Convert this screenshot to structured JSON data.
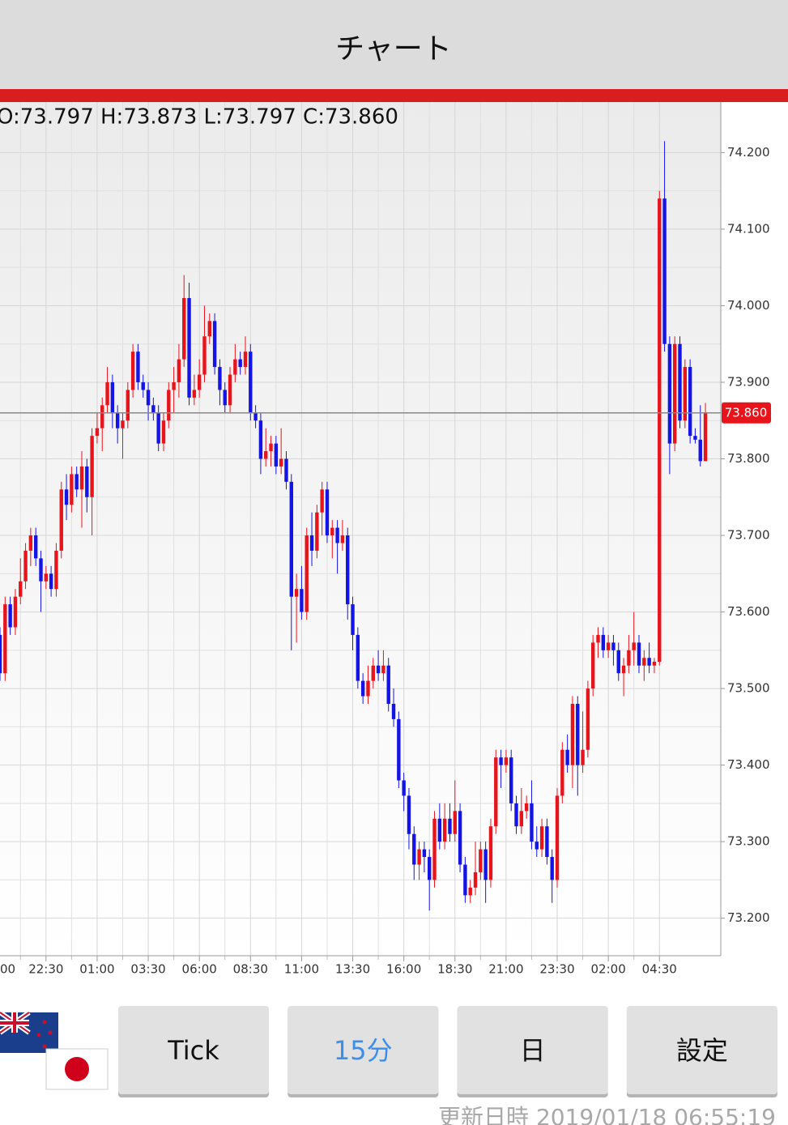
{
  "header": {
    "title": "チャート"
  },
  "chart_data": {
    "type": "candlestick",
    "ohlc_text": "O:73.797 H:73.873 L:73.797 C:73.860",
    "up_color": "#e8141c",
    "down_color": "#1414e6",
    "grid": true,
    "xlim": [
      0,
      141
    ],
    "xticks": [
      {
        "value": -1,
        "label": "00"
      },
      {
        "value": 9,
        "label": "22:30"
      },
      {
        "value": 19,
        "label": "01:00"
      },
      {
        "value": 29,
        "label": "03:30"
      },
      {
        "value": 39,
        "label": "06:00"
      },
      {
        "value": 49,
        "label": "08:30"
      },
      {
        "value": 59,
        "label": "11:00"
      },
      {
        "value": 69,
        "label": "13:30"
      },
      {
        "value": 79,
        "label": "16:00"
      },
      {
        "value": 89,
        "label": "18:30"
      },
      {
        "value": 99,
        "label": "21:00"
      },
      {
        "value": 109,
        "label": "23:30"
      },
      {
        "value": 119,
        "label": "02:00"
      },
      {
        "value": 129,
        "label": "04:30"
      }
    ],
    "ylim": [
      73.151,
      74.266
    ],
    "yticks": [
      {
        "value": 73.2,
        "label": "73.200"
      },
      {
        "value": 73.3,
        "label": "73.300"
      },
      {
        "value": 73.4,
        "label": "73.400"
      },
      {
        "value": 73.5,
        "label": "73.500"
      },
      {
        "value": 73.6,
        "label": "73.600"
      },
      {
        "value": 73.7,
        "label": "73.700"
      },
      {
        "value": 73.8,
        "label": "73.800"
      },
      {
        "value": 73.9,
        "label": "73.900"
      },
      {
        "value": 74,
        "label": "74.000"
      },
      {
        "value": 74.1,
        "label": "74.100"
      },
      {
        "value": 74.2,
        "label": "74.200"
      }
    ],
    "current_price": {
      "value": 73.86,
      "label": "73.860"
    },
    "candles": [
      [
        73.57,
        73.58,
        73.51,
        73.52
      ],
      [
        73.52,
        73.62,
        73.51,
        73.61
      ],
      [
        73.61,
        73.62,
        73.57,
        73.58
      ],
      [
        73.58,
        73.63,
        73.57,
        73.62
      ],
      [
        73.62,
        73.67,
        73.61,
        73.64
      ],
      [
        73.64,
        73.69,
        73.63,
        73.68
      ],
      [
        73.68,
        73.71,
        73.66,
        73.7
      ],
      [
        73.7,
        73.71,
        73.66,
        73.67
      ],
      [
        73.67,
        73.68,
        73.6,
        73.64
      ],
      [
        73.64,
        73.66,
        73.63,
        73.65
      ],
      [
        73.65,
        73.66,
        73.62,
        73.63
      ],
      [
        73.63,
        73.69,
        73.62,
        73.68
      ],
      [
        73.68,
        73.77,
        73.67,
        73.76
      ],
      [
        73.76,
        73.78,
        73.72,
        73.74
      ],
      [
        73.74,
        73.79,
        73.73,
        73.78
      ],
      [
        73.78,
        73.79,
        73.75,
        73.76
      ],
      [
        73.76,
        73.81,
        73.71,
        73.79
      ],
      [
        73.79,
        73.8,
        73.73,
        73.75
      ],
      [
        73.75,
        73.84,
        73.7,
        73.83
      ],
      [
        73.83,
        73.86,
        73.82,
        73.84
      ],
      [
        73.84,
        73.88,
        73.81,
        73.87
      ],
      [
        73.87,
        73.92,
        73.86,
        73.9
      ],
      [
        73.9,
        73.91,
        73.84,
        73.86
      ],
      [
        73.86,
        73.87,
        73.82,
        73.84
      ],
      [
        73.84,
        73.86,
        73.8,
        73.85
      ],
      [
        73.85,
        73.9,
        73.84,
        73.89
      ],
      [
        73.89,
        73.95,
        73.88,
        73.94
      ],
      [
        73.94,
        73.95,
        73.89,
        73.9
      ],
      [
        73.9,
        73.91,
        73.88,
        73.89
      ],
      [
        73.89,
        73.9,
        73.85,
        73.87
      ],
      [
        73.87,
        73.88,
        73.85,
        73.86
      ],
      [
        73.86,
        73.87,
        73.81,
        73.82
      ],
      [
        73.82,
        73.86,
        73.81,
        73.85
      ],
      [
        73.85,
        73.9,
        73.84,
        73.89
      ],
      [
        73.89,
        73.92,
        73.86,
        73.9
      ],
      [
        73.9,
        73.95,
        73.88,
        73.93
      ],
      [
        73.93,
        74.04,
        73.92,
        74.01
      ],
      [
        74.01,
        74.03,
        73.87,
        73.88
      ],
      [
        73.88,
        73.91,
        73.87,
        73.89
      ],
      [
        73.89,
        73.93,
        73.88,
        73.91
      ],
      [
        73.91,
        74.0,
        73.9,
        73.96
      ],
      [
        73.96,
        73.99,
        73.95,
        73.98
      ],
      [
        73.98,
        73.99,
        73.91,
        73.92
      ],
      [
        73.92,
        73.93,
        73.87,
        73.89
      ],
      [
        73.89,
        73.9,
        73.86,
        73.87
      ],
      [
        73.87,
        73.92,
        73.86,
        73.91
      ],
      [
        73.91,
        73.95,
        73.9,
        73.93
      ],
      [
        73.93,
        73.94,
        73.91,
        73.92
      ],
      [
        73.92,
        73.96,
        73.91,
        73.94
      ],
      [
        73.94,
        73.95,
        73.85,
        73.86
      ],
      [
        73.86,
        73.87,
        73.84,
        73.85
      ],
      [
        73.85,
        73.86,
        73.78,
        73.8
      ],
      [
        73.8,
        73.84,
        73.79,
        73.81
      ],
      [
        73.81,
        73.83,
        73.79,
        73.82
      ],
      [
        73.82,
        73.83,
        73.78,
        73.79
      ],
      [
        73.79,
        73.84,
        73.78,
        73.8
      ],
      [
        73.8,
        73.81,
        73.76,
        73.77
      ],
      [
        73.77,
        73.78,
        73.55,
        73.62
      ],
      [
        73.62,
        73.65,
        73.56,
        73.63
      ],
      [
        73.63,
        73.66,
        73.59,
        73.6
      ],
      [
        73.6,
        73.71,
        73.59,
        73.7
      ],
      [
        73.7,
        73.73,
        73.66,
        73.68
      ],
      [
        73.68,
        73.74,
        73.67,
        73.73
      ],
      [
        73.73,
        73.77,
        73.7,
        73.76
      ],
      [
        73.76,
        73.77,
        73.69,
        73.7
      ],
      [
        73.7,
        73.72,
        73.67,
        73.71
      ],
      [
        73.71,
        73.72,
        73.65,
        73.69
      ],
      [
        73.69,
        73.72,
        73.68,
        73.7
      ],
      [
        73.7,
        73.71,
        73.59,
        73.61
      ],
      [
        73.61,
        73.62,
        73.55,
        73.57
      ],
      [
        73.57,
        73.58,
        73.5,
        73.51
      ],
      [
        73.51,
        73.52,
        73.48,
        73.49
      ],
      [
        73.49,
        73.53,
        73.48,
        73.51
      ],
      [
        73.51,
        73.54,
        73.5,
        73.53
      ],
      [
        73.53,
        73.55,
        73.51,
        73.52
      ],
      [
        73.52,
        73.55,
        73.51,
        73.53
      ],
      [
        73.53,
        73.54,
        73.47,
        73.48
      ],
      [
        73.48,
        73.5,
        73.45,
        73.46
      ],
      [
        73.46,
        73.47,
        73.37,
        73.38
      ],
      [
        73.38,
        73.39,
        73.34,
        73.36
      ],
      [
        73.36,
        73.37,
        73.29,
        73.31
      ],
      [
        73.31,
        73.32,
        73.25,
        73.27
      ],
      [
        73.27,
        73.3,
        73.25,
        73.29
      ],
      [
        73.29,
        73.3,
        73.26,
        73.28
      ],
      [
        73.28,
        73.29,
        73.21,
        73.25
      ],
      [
        73.25,
        73.34,
        73.24,
        73.33
      ],
      [
        73.33,
        73.35,
        73.29,
        73.3
      ],
      [
        73.3,
        73.35,
        73.29,
        73.33
      ],
      [
        73.33,
        73.35,
        73.3,
        73.31
      ],
      [
        73.31,
        73.38,
        73.3,
        73.34
      ],
      [
        73.34,
        73.35,
        73.26,
        73.27
      ],
      [
        73.27,
        73.28,
        73.22,
        73.23
      ],
      [
        73.23,
        73.25,
        73.22,
        73.24
      ],
      [
        73.24,
        73.3,
        73.23,
        73.26
      ],
      [
        73.26,
        73.3,
        73.25,
        73.29
      ],
      [
        73.29,
        73.3,
        73.22,
        73.25
      ],
      [
        73.25,
        73.33,
        73.24,
        73.32
      ],
      [
        73.32,
        73.42,
        73.31,
        73.41
      ],
      [
        73.41,
        73.42,
        73.37,
        73.4
      ],
      [
        73.4,
        73.42,
        73.39,
        73.41
      ],
      [
        73.41,
        73.42,
        73.34,
        73.35
      ],
      [
        73.35,
        73.36,
        73.31,
        73.32
      ],
      [
        73.32,
        73.37,
        73.31,
        73.34
      ],
      [
        73.34,
        73.36,
        73.33,
        73.35
      ],
      [
        73.35,
        73.38,
        73.29,
        73.3
      ],
      [
        73.3,
        73.32,
        73.28,
        73.29
      ],
      [
        73.29,
        73.33,
        73.28,
        73.32
      ],
      [
        73.32,
        73.33,
        73.27,
        73.28
      ],
      [
        73.28,
        73.29,
        73.22,
        73.25
      ],
      [
        73.25,
        73.37,
        73.24,
        73.36
      ],
      [
        73.36,
        73.43,
        73.35,
        73.42
      ],
      [
        73.42,
        73.44,
        73.39,
        73.4
      ],
      [
        73.4,
        73.49,
        73.37,
        73.48
      ],
      [
        73.48,
        73.49,
        73.36,
        73.4
      ],
      [
        73.4,
        73.47,
        73.39,
        73.42
      ],
      [
        73.42,
        73.51,
        73.41,
        73.5
      ],
      [
        73.5,
        73.57,
        73.49,
        73.56
      ],
      [
        73.56,
        73.58,
        73.54,
        73.57
      ],
      [
        73.57,
        73.58,
        73.54,
        73.55
      ],
      [
        73.55,
        73.57,
        73.54,
        73.56
      ],
      [
        73.56,
        73.57,
        73.53,
        73.55
      ],
      [
        73.55,
        73.56,
        73.51,
        73.52
      ],
      [
        73.52,
        73.54,
        73.49,
        73.53
      ],
      [
        73.53,
        73.57,
        73.52,
        73.55
      ],
      [
        73.55,
        73.6,
        73.53,
        73.56
      ],
      [
        73.56,
        73.57,
        73.52,
        73.53
      ],
      [
        73.53,
        73.55,
        73.51,
        73.54
      ],
      [
        73.54,
        73.56,
        73.52,
        73.53
      ],
      [
        73.53,
        73.54,
        73.52,
        73.535
      ],
      [
        73.535,
        74.15,
        73.53,
        74.14
      ],
      [
        74.14,
        74.215,
        73.94,
        73.95
      ],
      [
        73.95,
        73.96,
        73.78,
        73.82
      ],
      [
        73.82,
        73.96,
        73.81,
        73.95
      ],
      [
        73.95,
        73.96,
        73.84,
        73.85
      ],
      [
        73.85,
        73.93,
        73.84,
        73.92
      ],
      [
        73.92,
        73.93,
        73.82,
        73.83
      ],
      [
        73.83,
        73.84,
        73.82,
        73.825
      ],
      [
        73.825,
        73.87,
        73.79,
        73.797
      ],
      [
        73.797,
        73.873,
        73.797,
        73.86
      ]
    ]
  },
  "buttons": [
    {
      "label": "Tick",
      "active": false
    },
    {
      "label": "15分",
      "active": true
    },
    {
      "label": "日",
      "active": false
    },
    {
      "label": "設定",
      "active": false
    }
  ],
  "footer": {
    "updated": "更新日時 2019/01/18 06:55:19"
  }
}
